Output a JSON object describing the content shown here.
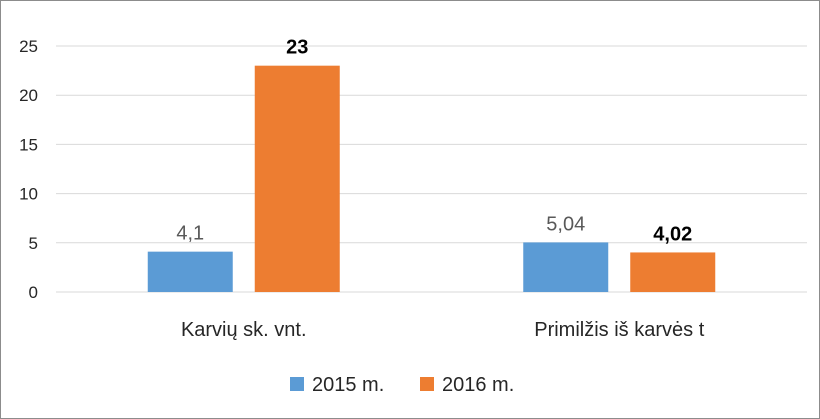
{
  "chart_data": {
    "type": "bar",
    "title": "",
    "xlabel": "",
    "ylabel": "",
    "categories": [
      "Karvių sk. vnt.",
      "Primilžis iš karvės t"
    ],
    "series": [
      {
        "name": "2015 m.",
        "values": [
          4.1,
          5.04
        ],
        "labels": [
          "4,1",
          "5,04"
        ],
        "color": "#5b9bd5"
      },
      {
        "name": "2016 m.",
        "values": [
          23,
          4.02
        ],
        "labels": [
          "23",
          "4,02"
        ],
        "color": "#ed7d31"
      }
    ],
    "ylim": [
      0,
      25
    ],
    "yticks": [
      0,
      5,
      10,
      15,
      20,
      25
    ],
    "grid": true,
    "legend_position": "bottom"
  }
}
